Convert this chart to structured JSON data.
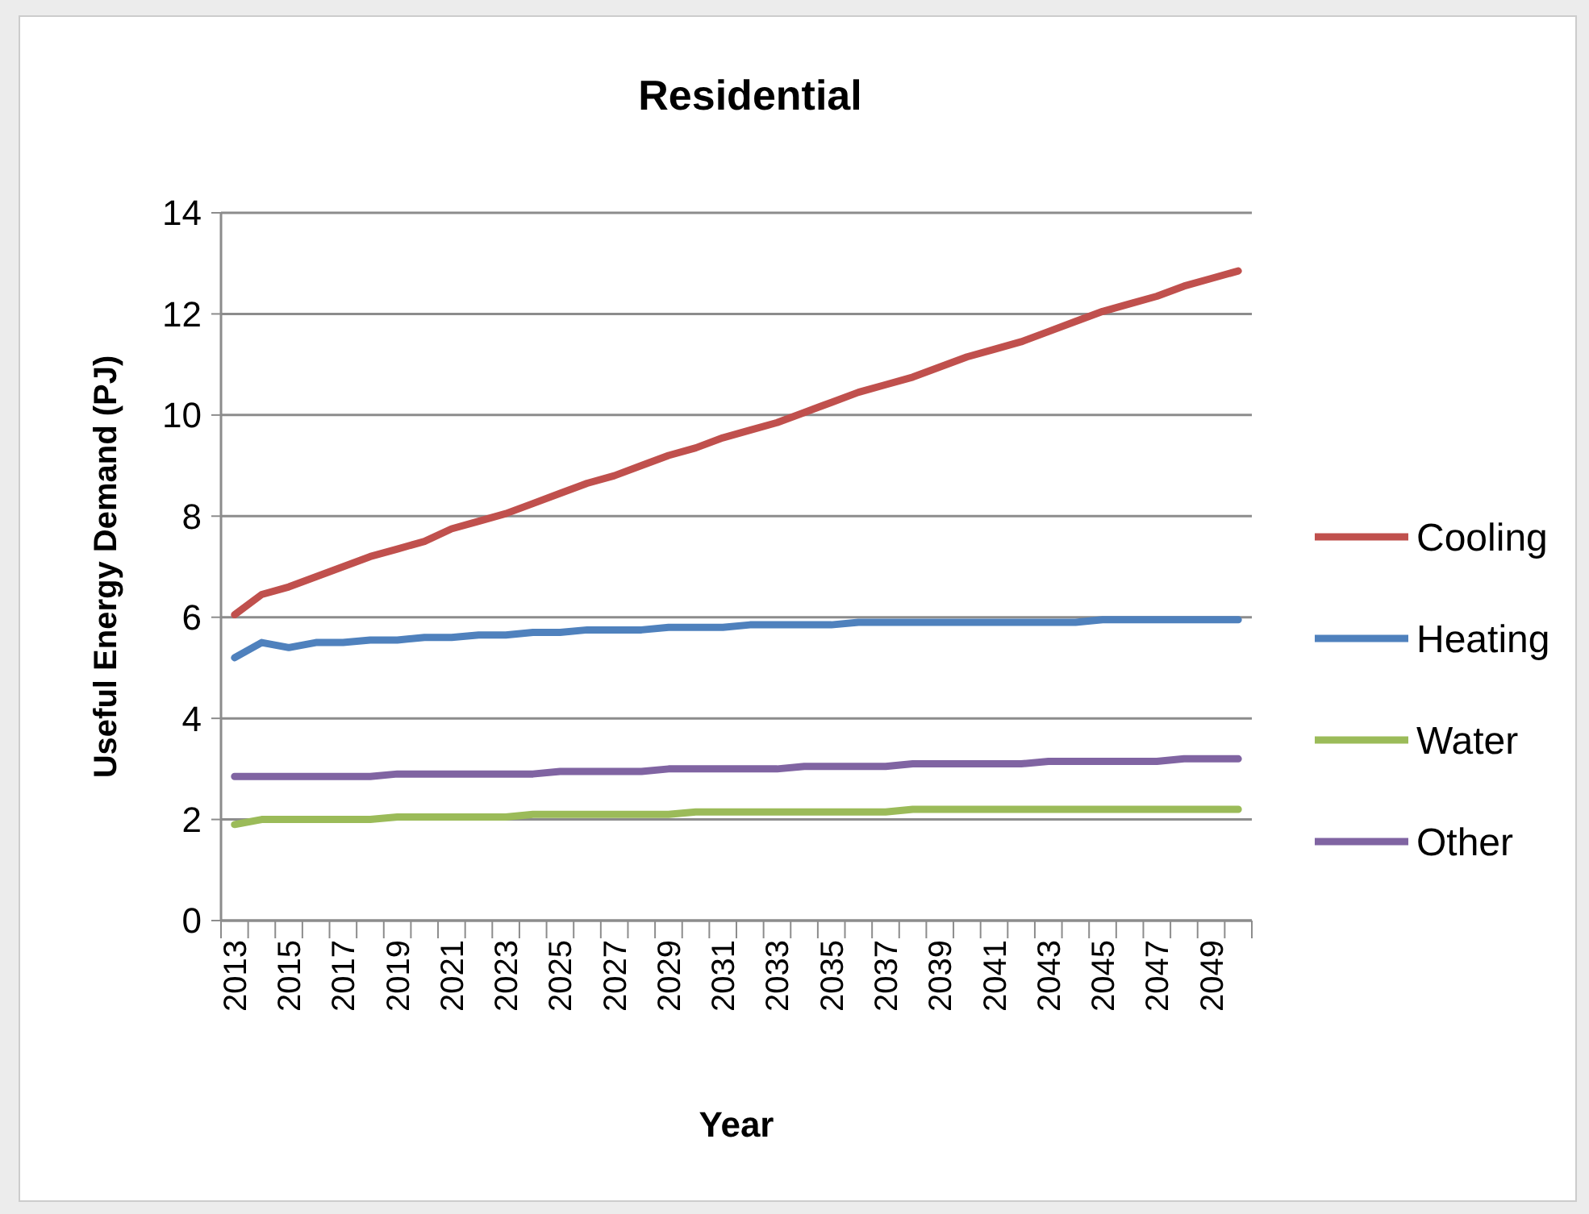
{
  "chart_data": {
    "type": "line",
    "title": "Residential",
    "xlabel": "Year",
    "ylabel": "Useful Energy Demand (PJ)",
    "categories": [
      "2013",
      null,
      "2015",
      null,
      "2017",
      null,
      "2019",
      null,
      "2021",
      null,
      "2023",
      null,
      "2025",
      null,
      "2027",
      null,
      "2029",
      null,
      "2031",
      null,
      "2033",
      null,
      "2035",
      null,
      "2037",
      null,
      "2039",
      null,
      "2041",
      null,
      "2043",
      null,
      "2045",
      null,
      "2047",
      null,
      "2049",
      null
    ],
    "series": [
      {
        "name": "Cooling",
        "color": "#c0504d",
        "values": [
          6.05,
          6.45,
          6.6,
          6.8,
          7.0,
          7.2,
          7.35,
          7.5,
          7.75,
          7.9,
          8.05,
          8.25,
          8.45,
          8.65,
          8.8,
          9.0,
          9.2,
          9.35,
          9.55,
          9.7,
          9.85,
          10.05,
          10.25,
          10.45,
          10.6,
          10.75,
          10.95,
          11.15,
          11.3,
          11.45,
          11.65,
          11.85,
          12.05,
          12.2,
          12.35,
          12.55,
          12.7,
          12.85
        ]
      },
      {
        "name": "Heating",
        "color": "#4f81bd",
        "values": [
          5.2,
          5.5,
          5.4,
          5.5,
          5.5,
          5.55,
          5.55,
          5.6,
          5.6,
          5.65,
          5.65,
          5.7,
          5.7,
          5.75,
          5.75,
          5.75,
          5.8,
          5.8,
          5.8,
          5.85,
          5.85,
          5.85,
          5.85,
          5.9,
          5.9,
          5.9,
          5.9,
          5.9,
          5.9,
          5.9,
          5.9,
          5.9,
          5.95,
          5.95,
          5.95,
          5.95,
          5.95,
          5.95
        ]
      },
      {
        "name": "Water",
        "color": "#9bbb59",
        "values": [
          1.9,
          2.0,
          2.0,
          2.0,
          2.0,
          2.0,
          2.05,
          2.05,
          2.05,
          2.05,
          2.05,
          2.1,
          2.1,
          2.1,
          2.1,
          2.1,
          2.1,
          2.15,
          2.15,
          2.15,
          2.15,
          2.15,
          2.15,
          2.15,
          2.15,
          2.2,
          2.2,
          2.2,
          2.2,
          2.2,
          2.2,
          2.2,
          2.2,
          2.2,
          2.2,
          2.2,
          2.2,
          2.2
        ]
      },
      {
        "name": "Other",
        "color": "#8064a2",
        "values": [
          2.85,
          2.85,
          2.85,
          2.85,
          2.85,
          2.85,
          2.9,
          2.9,
          2.9,
          2.9,
          2.9,
          2.9,
          2.95,
          2.95,
          2.95,
          2.95,
          3.0,
          3.0,
          3.0,
          3.0,
          3.0,
          3.05,
          3.05,
          3.05,
          3.05,
          3.1,
          3.1,
          3.1,
          3.1,
          3.1,
          3.15,
          3.15,
          3.15,
          3.15,
          3.15,
          3.2,
          3.2,
          3.2
        ]
      }
    ],
    "ylim": [
      0,
      14
    ],
    "yticks": [
      0,
      2,
      4,
      6,
      8,
      10,
      12,
      14
    ],
    "grid": "y",
    "legend": "right",
    "marker": "none",
    "line_style": "solid"
  }
}
